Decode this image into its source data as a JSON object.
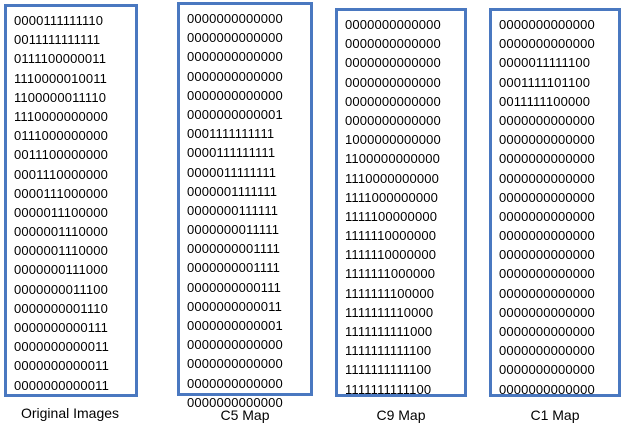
{
  "colors": {
    "panel_border": "#4a78c0",
    "text": "#000000"
  },
  "panels": [
    {
      "label": "Original Images",
      "rows": [
        "0000111111110",
        "0011111111111",
        "0111100000011",
        "1110000010011",
        "1100000011110",
        "1110000000000",
        "0111000000000",
        "0011100000000",
        "0001110000000",
        "0000111000000",
        "0000011100000",
        "0000001110000",
        "0000001110000",
        "0000000111000",
        "0000000011100",
        "0000000001110",
        "0000000000111",
        "0000000000011",
        "0000000000011",
        "0000000000011"
      ]
    },
    {
      "label": "C5 Map",
      "rows": [
        "0000000000000",
        "0000000000000",
        "0000000000000",
        "0000000000000",
        "0000000000000",
        "0000000000001",
        "0001111111111",
        "0000111111111",
        "0000011111111",
        "0000001111111",
        "0000000111111",
        "0000000011111",
        "0000000001111",
        "0000000001111",
        "0000000000111",
        "0000000000011",
        "0000000000001",
        "0000000000000",
        "0000000000000",
        "0000000000000",
        "0000000000000"
      ]
    },
    {
      "label": "C9 Map",
      "rows": [
        "0000000000000",
        "0000000000000",
        "0000000000000",
        "0000000000000",
        "0000000000000",
        "0000000000000",
        "1000000000000",
        "1100000000000",
        "1110000000000",
        "1111000000000",
        "1111100000000",
        "1111110000000",
        "1111110000000",
        "1111111000000",
        "1111111100000",
        "1111111110000",
        "1111111111000",
        "1111111111100",
        "1111111111100",
        "1111111111100"
      ]
    },
    {
      "label": "C1 Map",
      "rows": [
        "0000000000000",
        "0000000000000",
        "0000011111100",
        "0001111101100",
        "0011111100000",
        "0000000000000",
        "0000000000000",
        "0000000000000",
        "0000000000000",
        "0000000000000",
        "0000000000000",
        "0000000000000",
        "0000000000000",
        "0000000000000",
        "0000000000000",
        "0000000000000",
        "0000000000000",
        "0000000000000",
        "0000000000000",
        "0000000000000"
      ]
    }
  ]
}
